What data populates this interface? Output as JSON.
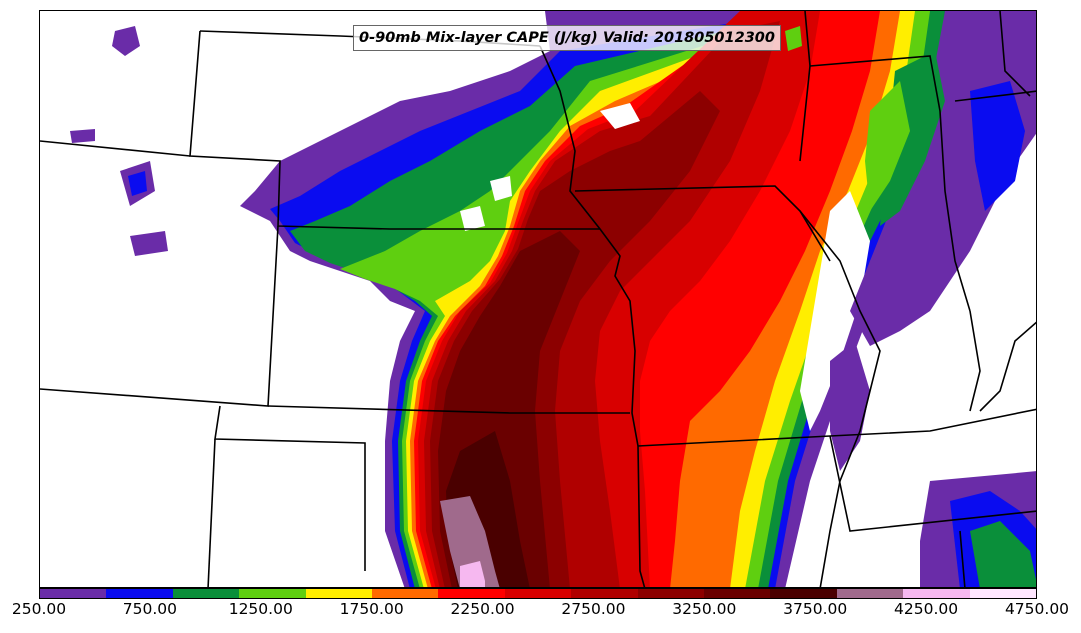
{
  "title": "0-90mb Mix-layer CAPE (J/kg) Valid: 201805012300",
  "colorbar": {
    "colors": [
      "#6a2ca8",
      "#0a0cf0",
      "#0a8f3a",
      "#5fcf10",
      "#ffee00",
      "#ff6a00",
      "#ff0000",
      "#d80000",
      "#b00000",
      "#8c0000",
      "#6a0000",
      "#4a0000",
      "#a06a8c",
      "#f6b8f0",
      "#ffe6ff"
    ],
    "ticks": [
      "250.00",
      "750.00",
      "1250.00",
      "1750.00",
      "2250.00",
      "2750.00",
      "3250.00",
      "3750.00",
      "4250.00",
      "4750.00"
    ],
    "tick_values": [
      250,
      750,
      1250,
      1750,
      2250,
      2750,
      3250,
      3750,
      4250,
      4750
    ],
    "range": [
      250,
      4750
    ],
    "units": "J/kg"
  },
  "map": {
    "field": "0-90mb Mix-layer CAPE",
    "valid_time": "201805012300"
  }
}
